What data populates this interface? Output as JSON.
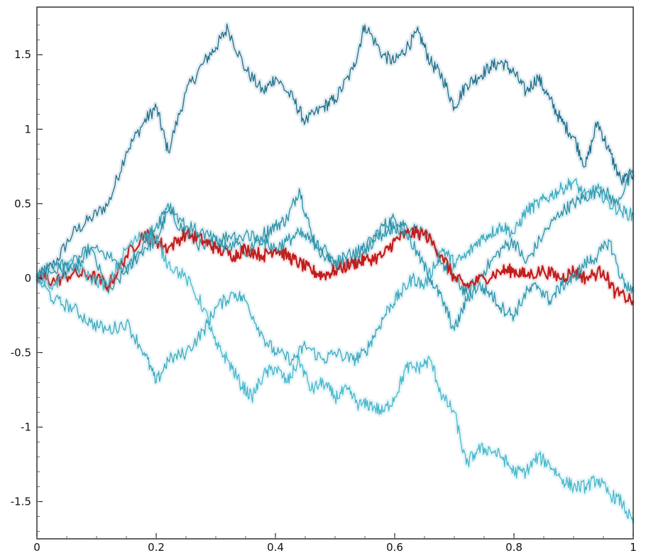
{
  "chart_data": {
    "type": "line",
    "title": "",
    "xlabel": "",
    "ylabel": "",
    "xlim": [
      0,
      1
    ],
    "ylim": [
      -1.75,
      1.82
    ],
    "x_ticks": [
      0,
      0.2,
      0.4,
      0.6,
      0.8,
      1
    ],
    "x_tick_labels": [
      "0",
      "0.2",
      "0.4",
      "0.6",
      "0.8",
      "1"
    ],
    "y_ticks": [
      -1.5,
      -1,
      -0.5,
      0,
      0.5,
      1,
      1.5
    ],
    "y_tick_labels": [
      "-1.5",
      "-1",
      "-0.5",
      "0",
      "0.5",
      "1",
      "1.5"
    ],
    "grid": false,
    "legend": "none",
    "series": [
      {
        "color": "#1f6f8b",
        "x": [
          0,
          0.03,
          0.06,
          0.09,
          0.12,
          0.15,
          0.18,
          0.2,
          0.22,
          0.25,
          0.28,
          0.3,
          0.32,
          0.35,
          0.38,
          0.4,
          0.43,
          0.45,
          0.48,
          0.5,
          0.53,
          0.55,
          0.58,
          0.6,
          0.62,
          0.64,
          0.66,
          0.68,
          0.7,
          0.72,
          0.74,
          0.76,
          0.78,
          0.8,
          0.82,
          0.84,
          0.86,
          0.88,
          0.9,
          0.92,
          0.94,
          0.96,
          0.98,
          1
        ],
        "y": [
          0,
          0.1,
          0.3,
          0.4,
          0.5,
          0.85,
          1.05,
          1.15,
          0.85,
          1.25,
          1.45,
          1.55,
          1.68,
          1.4,
          1.25,
          1.35,
          1.2,
          1.05,
          1.15,
          1.2,
          1.4,
          1.7,
          1.5,
          1.45,
          1.55,
          1.65,
          1.45,
          1.35,
          1.15,
          1.3,
          1.35,
          1.42,
          1.45,
          1.38,
          1.25,
          1.35,
          1.2,
          1.05,
          0.95,
          0.75,
          1.05,
          0.85,
          0.65,
          0.7
        ]
      },
      {
        "color": "#2a8fa5",
        "x": [
          0,
          0.03,
          0.06,
          0.09,
          0.12,
          0.15,
          0.18,
          0.2,
          0.22,
          0.25,
          0.28,
          0.3,
          0.33,
          0.35,
          0.38,
          0.4,
          0.42,
          0.44,
          0.46,
          0.48,
          0.5,
          0.53,
          0.55,
          0.58,
          0.6,
          0.62,
          0.65,
          0.68,
          0.7,
          0.72,
          0.75,
          0.78,
          0.8,
          0.82,
          0.85,
          0.88,
          0.9,
          0.92,
          0.95,
          0.97,
          1
        ],
        "y": [
          0,
          0.05,
          0.1,
          0.2,
          -0.1,
          0.05,
          0.2,
          0.25,
          0.45,
          0.3,
          0.2,
          0.25,
          0.3,
          0.15,
          0.3,
          0.35,
          0.4,
          0.6,
          0.3,
          0.15,
          0.1,
          0.1,
          0.2,
          0.35,
          0.4,
          0.35,
          0.3,
          0.1,
          0.0,
          -0.1,
          0.05,
          0.2,
          0.25,
          0.1,
          0.3,
          0.45,
          0.5,
          0.55,
          0.6,
          0.5,
          0.7
        ]
      },
      {
        "color": "#c21d1d",
        "x": [
          0,
          0.03,
          0.06,
          0.09,
          0.12,
          0.15,
          0.18,
          0.2,
          0.22,
          0.25,
          0.28,
          0.3,
          0.33,
          0.35,
          0.38,
          0.4,
          0.42,
          0.44,
          0.46,
          0.48,
          0.5,
          0.53,
          0.55,
          0.58,
          0.6,
          0.62,
          0.65,
          0.68,
          0.7,
          0.72,
          0.75,
          0.78,
          0.8,
          0.82,
          0.85,
          0.88,
          0.9,
          0.92,
          0.95,
          0.97,
          1
        ],
        "y": [
          0,
          -0.02,
          0.03,
          0.02,
          -0.05,
          0.15,
          0.3,
          0.25,
          0.2,
          0.3,
          0.25,
          0.2,
          0.15,
          0.2,
          0.15,
          0.2,
          0.15,
          0.1,
          0.05,
          0.02,
          0.05,
          0.1,
          0.12,
          0.15,
          0.25,
          0.3,
          0.3,
          0.15,
          0.0,
          -0.05,
          0.0,
          0.05,
          0.05,
          0.02,
          0.05,
          0.0,
          0.05,
          0.0,
          0.05,
          -0.1,
          -0.15
        ]
      },
      {
        "color": "#3ba9bf",
        "x": [
          0,
          0.03,
          0.06,
          0.09,
          0.12,
          0.15,
          0.18,
          0.2,
          0.22,
          0.25,
          0.28,
          0.3,
          0.33,
          0.35,
          0.38,
          0.4,
          0.43,
          0.45,
          0.48,
          0.5,
          0.53,
          0.55,
          0.57,
          0.59,
          0.61,
          0.63,
          0.65,
          0.68,
          0.7,
          0.72,
          0.74,
          0.76,
          0.78,
          0.8,
          0.82,
          0.84,
          0.86,
          0.88,
          0.9,
          0.92,
          0.94,
          0.96,
          0.98,
          1
        ],
        "y": [
          0,
          -0.15,
          -0.2,
          -0.3,
          -0.35,
          -0.3,
          -0.5,
          -0.7,
          -0.55,
          -0.5,
          -0.35,
          -0.2,
          -0.1,
          -0.15,
          -0.4,
          -0.5,
          -0.55,
          -0.45,
          -0.55,
          -0.5,
          -0.55,
          -0.5,
          -0.35,
          -0.2,
          -0.1,
          0.0,
          -0.05,
          0.2,
          0.1,
          0.15,
          0.25,
          0.3,
          0.35,
          0.3,
          0.45,
          0.5,
          0.55,
          0.6,
          0.65,
          0.55,
          0.6,
          0.5,
          0.45,
          0.42
        ]
      },
      {
        "color": "#46b8cc",
        "x": [
          0,
          0.03,
          0.06,
          0.09,
          0.12,
          0.15,
          0.18,
          0.2,
          0.22,
          0.25,
          0.28,
          0.3,
          0.32,
          0.34,
          0.36,
          0.38,
          0.4,
          0.42,
          0.44,
          0.46,
          0.48,
          0.5,
          0.52,
          0.54,
          0.56,
          0.58,
          0.6,
          0.62,
          0.64,
          0.66,
          0.68,
          0.7,
          0.72,
          0.74,
          0.76,
          0.78,
          0.8,
          0.82,
          0.84,
          0.86,
          0.88,
          0.9,
          0.92,
          0.94,
          0.96,
          0.98,
          1
        ],
        "y": [
          0,
          -0.05,
          0.1,
          0.0,
          -0.05,
          0.2,
          0.3,
          0.25,
          0.1,
          0.0,
          -0.2,
          -0.45,
          -0.55,
          -0.7,
          -0.8,
          -0.65,
          -0.6,
          -0.7,
          -0.55,
          -0.75,
          -0.7,
          -0.8,
          -0.75,
          -0.85,
          -0.85,
          -0.9,
          -0.8,
          -0.6,
          -0.6,
          -0.55,
          -0.8,
          -0.9,
          -1.25,
          -1.15,
          -1.15,
          -1.2,
          -1.3,
          -1.3,
          -1.2,
          -1.25,
          -1.35,
          -1.4,
          -1.4,
          -1.35,
          -1.45,
          -1.5,
          -1.65
        ]
      },
      {
        "color": "#2c96ad",
        "x": [
          0,
          0.03,
          0.06,
          0.09,
          0.12,
          0.15,
          0.18,
          0.2,
          0.22,
          0.25,
          0.28,
          0.3,
          0.32,
          0.35,
          0.38,
          0.4,
          0.42,
          0.44,
          0.46,
          0.48,
          0.5,
          0.52,
          0.55,
          0.58,
          0.6,
          0.62,
          0.64,
          0.66,
          0.68,
          0.7,
          0.72,
          0.74,
          0.76,
          0.78,
          0.8,
          0.82,
          0.84,
          0.86,
          0.88,
          0.9,
          0.92,
          0.94,
          0.96,
          0.98,
          1
        ],
        "y": [
          0,
          0.1,
          0.05,
          0.2,
          0.15,
          0.05,
          0.25,
          0.35,
          0.5,
          0.35,
          0.3,
          0.25,
          0.2,
          0.3,
          0.25,
          0.2,
          0.25,
          0.3,
          0.25,
          0.2,
          0.1,
          0.15,
          0.2,
          0.3,
          0.35,
          0.3,
          0.15,
          0.0,
          -0.15,
          -0.35,
          -0.15,
          -0.05,
          -0.1,
          -0.2,
          -0.25,
          -0.1,
          -0.05,
          -0.15,
          -0.05,
          0.0,
          0.1,
          0.15,
          0.25,
          0.0,
          -0.1
        ]
      }
    ]
  }
}
